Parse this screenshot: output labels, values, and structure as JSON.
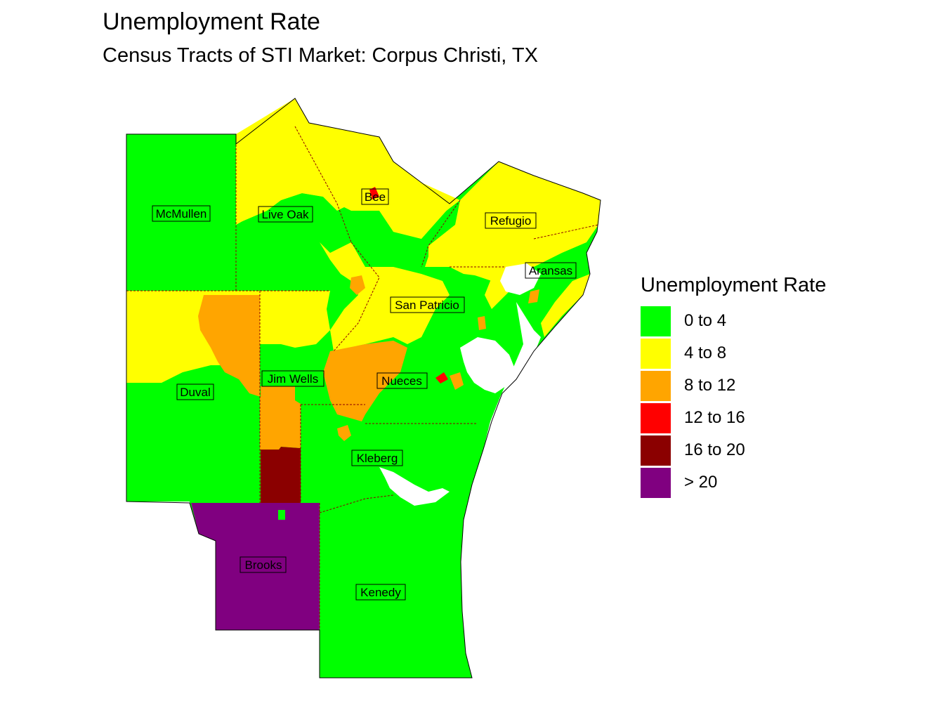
{
  "title": "Unemployment Rate",
  "subtitle": "Census Tracts of STI Market: Corpus Christi, TX",
  "legend": {
    "title": "Unemployment Rate",
    "items": [
      {
        "label": "0 to 4",
        "color": "#00ff00"
      },
      {
        "label": "4 to 8",
        "color": "#ffff00"
      },
      {
        "label": "8 to 12",
        "color": "#ffa500"
      },
      {
        "label": "12 to 16",
        "color": "#ff0000"
      },
      {
        "label": "16 to 20",
        "color": "#8b0000"
      },
      {
        "label": "> 20",
        "color": "#800080"
      }
    ]
  },
  "counties": [
    {
      "name": "McMullen"
    },
    {
      "name": "Live Oak"
    },
    {
      "name": "Bee"
    },
    {
      "name": "Refugio"
    },
    {
      "name": "Aransas"
    },
    {
      "name": "San Patricio"
    },
    {
      "name": "Jim Wells"
    },
    {
      "name": "Nueces"
    },
    {
      "name": "Duval"
    },
    {
      "name": "Kleberg"
    },
    {
      "name": "Brooks"
    },
    {
      "name": "Kenedy"
    }
  ]
}
